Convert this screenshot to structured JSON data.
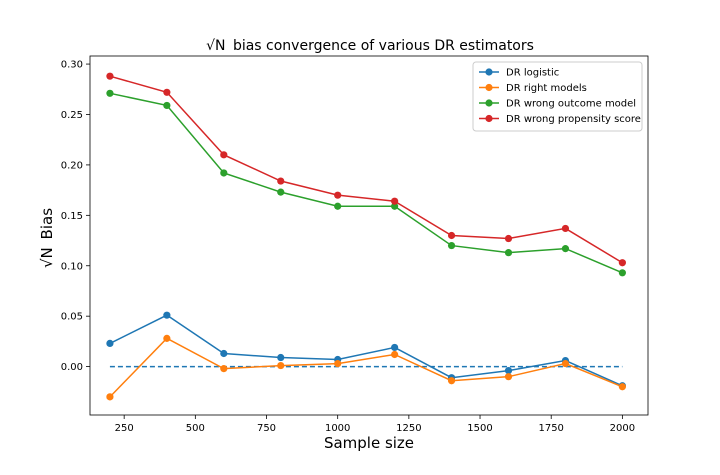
{
  "chart_data": {
    "type": "line",
    "title": "bias convergence of various DR estimators",
    "title_prefix": "√N",
    "xlabel": "Sample size",
    "ylabel": "Bias",
    "ylabel_prefix": "√N",
    "xlim": [
      130,
      2090
    ],
    "ylim": [
      -0.048,
      0.308
    ],
    "xticks": [
      250,
      500,
      750,
      1000,
      1250,
      1500,
      1750,
      2000
    ],
    "yticks": [
      0.0,
      0.05,
      0.1,
      0.15,
      0.2,
      0.25,
      0.3
    ],
    "ytick_labels": [
      "0.00",
      "0.05",
      "0.10",
      "0.15",
      "0.20",
      "0.25",
      "0.30"
    ],
    "grid": false,
    "legend_position": "top-right",
    "x": [
      200,
      400,
      600,
      800,
      1000,
      1200,
      1400,
      1600,
      1800,
      2000
    ],
    "series": [
      {
        "name": "DR logistic",
        "color": "#1f77b4",
        "values": [
          0.023,
          0.051,
          0.013,
          0.009,
          0.007,
          0.019,
          -0.011,
          -0.004,
          0.006,
          -0.019
        ]
      },
      {
        "name": "DR right models",
        "color": "#ff7f0e",
        "values": [
          -0.03,
          0.028,
          -0.002,
          0.001,
          0.003,
          0.012,
          -0.014,
          -0.01,
          0.003,
          -0.02
        ]
      },
      {
        "name": "DR wrong outcome model",
        "color": "#2ca02c",
        "values": [
          0.271,
          0.259,
          0.192,
          0.173,
          0.159,
          0.159,
          0.12,
          0.113,
          0.117,
          0.093
        ]
      },
      {
        "name": "DR wrong propensity score",
        "color": "#d62728",
        "values": [
          0.288,
          0.272,
          0.21,
          0.184,
          0.17,
          0.164,
          0.13,
          0.127,
          0.137,
          0.103
        ]
      }
    ],
    "reference_line": {
      "y": 0.0,
      "x_from": 200,
      "x_to": 2000,
      "color": "#1f77b4",
      "style": "dashed"
    }
  }
}
